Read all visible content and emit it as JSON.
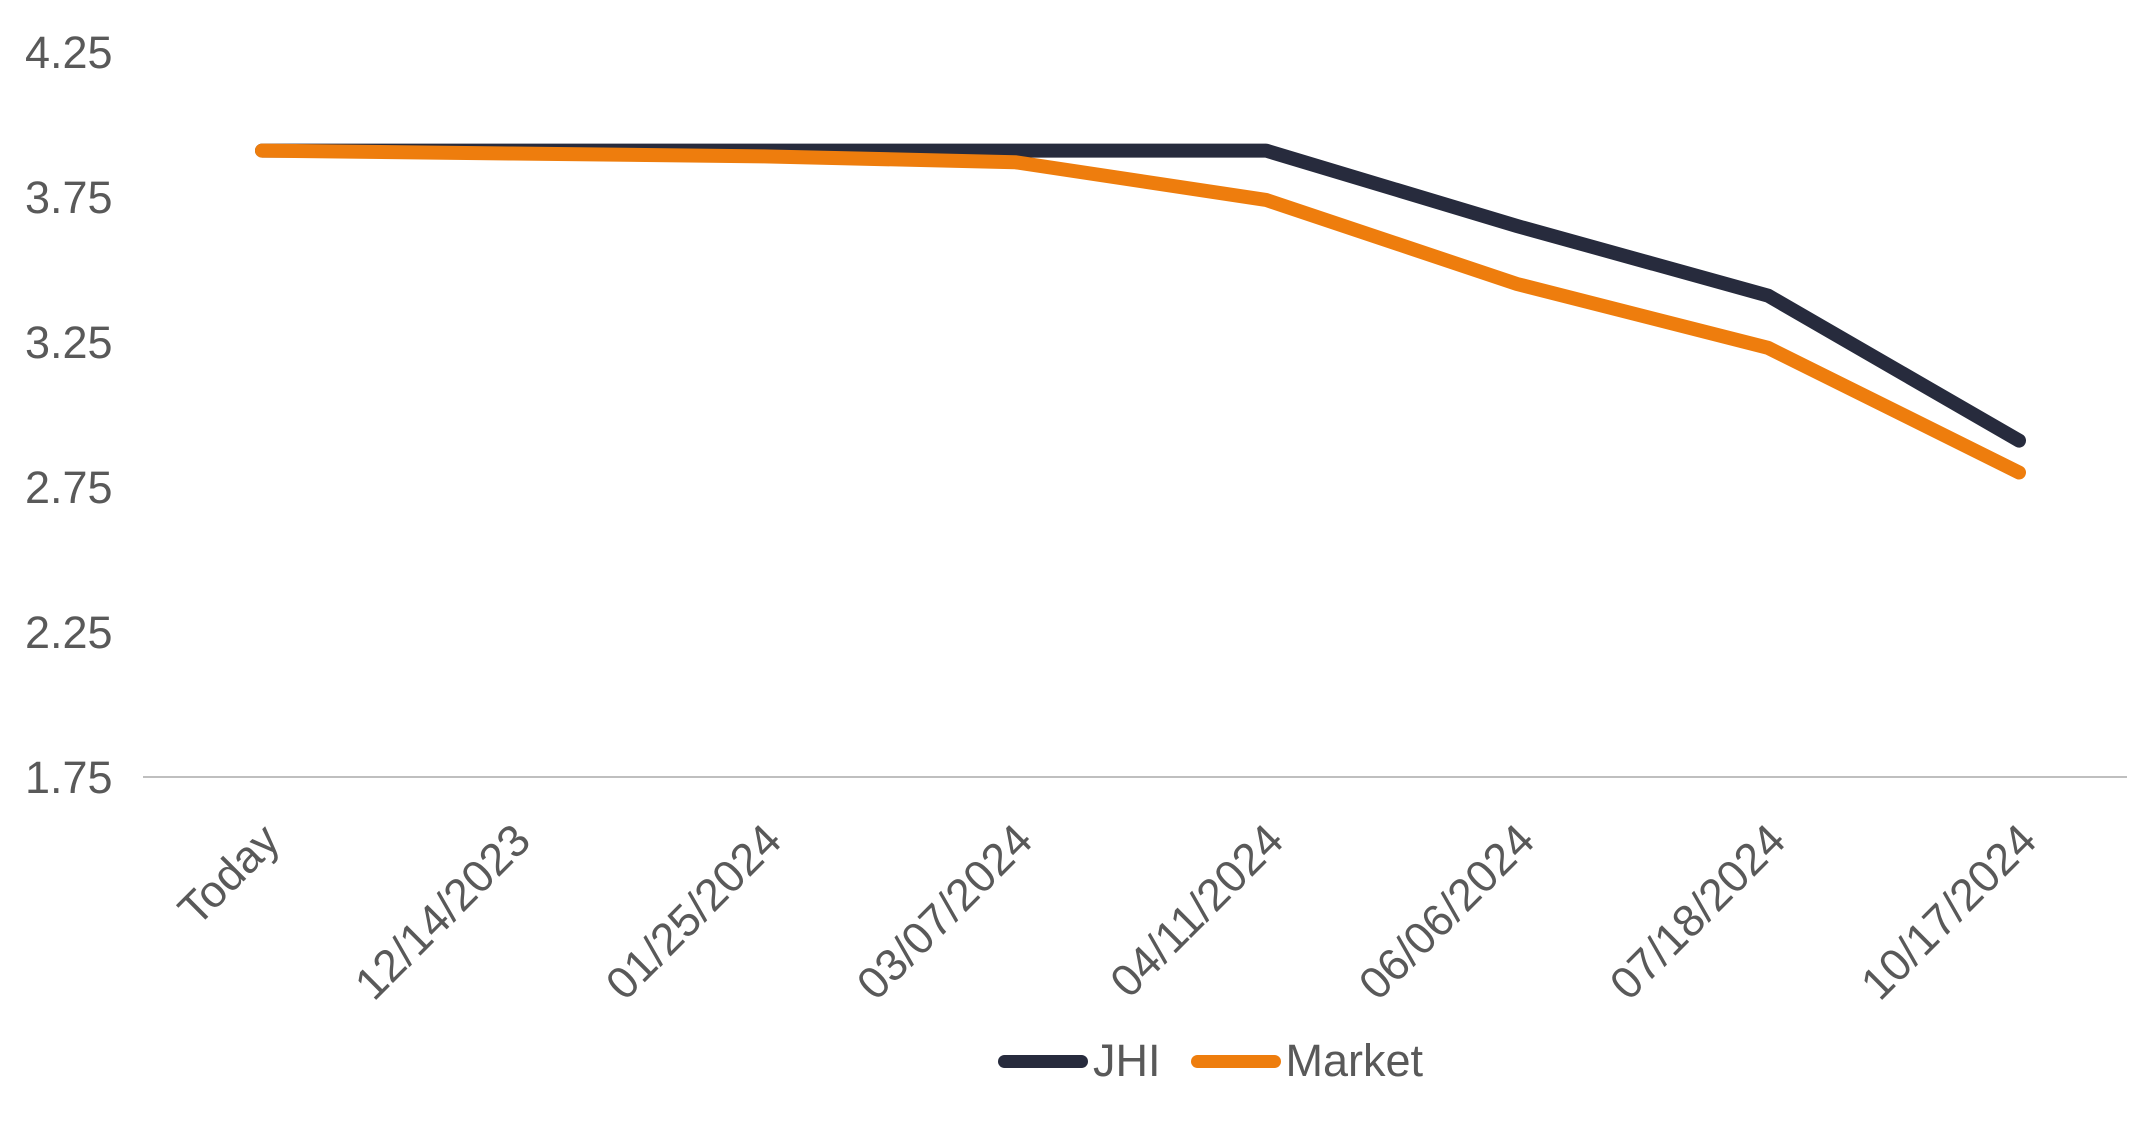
{
  "chart_data": {
    "type": "line",
    "title": "",
    "xlabel": "",
    "ylabel": "",
    "x": [
      "Today",
      "12/14/2023",
      "01/25/2024",
      "03/07/2024",
      "04/11/2024",
      "06/06/2024",
      "07/18/2024",
      "10/17/2024"
    ],
    "series": [
      {
        "name": "JHI",
        "color": "#272B3D",
        "values": [
          3.91,
          3.91,
          3.91,
          3.91,
          3.91,
          3.65,
          3.41,
          2.91
        ]
      },
      {
        "name": "Market",
        "color": "#EE7D0D",
        "values": [
          3.91,
          3.9,
          3.89,
          3.87,
          3.74,
          3.45,
          3.23,
          2.8
        ]
      }
    ],
    "ylim": [
      1.75,
      4.25
    ],
    "y_ticks": [
      4.25,
      3.75,
      3.25,
      2.75,
      2.25,
      1.75
    ],
    "grid": false,
    "gridline": "bottom-axis-only",
    "legend_position": "bottom",
    "x_label_rotation_deg": 45,
    "colors": {
      "text": "#595959",
      "axis_line": "#BFBFBF",
      "background": "#FFFFFF"
    }
  }
}
